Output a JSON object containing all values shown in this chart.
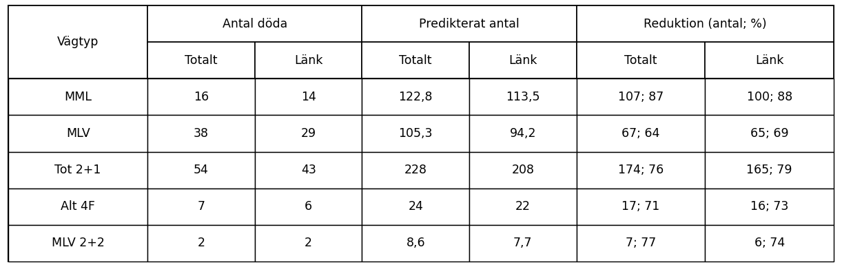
{
  "col_groups": [
    {
      "label": "Antal döda",
      "cols": [
        "Totalt",
        "Länk"
      ]
    },
    {
      "label": "Predikterat antal",
      "cols": [
        "Totalt",
        "Länk"
      ]
    },
    {
      "label": "Reduktion (antal; %)",
      "cols": [
        "Totalt",
        "Länk"
      ]
    }
  ],
  "first_col_label": "Vägtyp",
  "rows": [
    [
      "MML",
      "16",
      "14",
      "122,8",
      "113,5",
      "107; 87",
      "100; 88"
    ],
    [
      "MLV",
      "38",
      "29",
      "105,3",
      "94,2",
      "67; 64",
      "65; 69"
    ],
    [
      "Tot 2+1",
      "54",
      "43",
      "228",
      "208",
      "174; 76",
      "165; 79"
    ],
    [
      "Alt 4F",
      "7",
      "6",
      "24",
      "22",
      "17; 71",
      "16; 73"
    ],
    [
      "MLV 2+2",
      "2",
      "2",
      "8,6",
      "7,7",
      "7; 77",
      "6; 74"
    ]
  ],
  "col_widths_raw": [
    1.3,
    1.0,
    1.0,
    1.0,
    1.0,
    1.2,
    1.2
  ],
  "background_color": "#ffffff",
  "border_color": "#000000",
  "text_color": "#000000",
  "header_fontsize": 12.5,
  "cell_fontsize": 12.5,
  "fig_width": 12.22,
  "fig_height": 3.88
}
